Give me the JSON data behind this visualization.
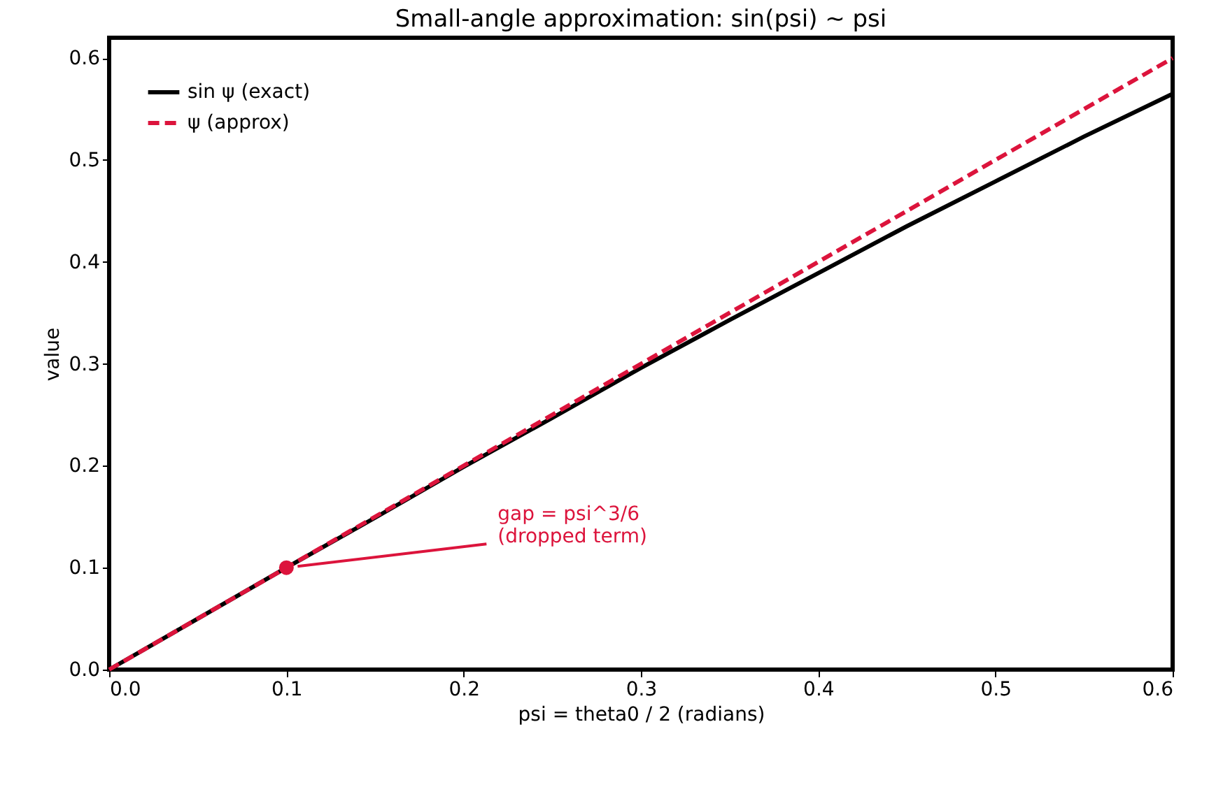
{
  "chart_data": {
    "type": "line",
    "title": "Small-angle approximation: sin(psi) ~ psi",
    "xlabel": "psi = theta0 / 2 (radians)",
    "ylabel": "value",
    "series": [
      {
        "name": "sin ψ (exact)",
        "color": "#000000",
        "line_style": "solid",
        "x": [
          0,
          0.05,
          0.1,
          0.15,
          0.2,
          0.25,
          0.3,
          0.35,
          0.4,
          0.45,
          0.5,
          0.55,
          0.6
        ],
        "values": [
          0,
          0.05,
          0.1,
          0.149,
          0.199,
          0.247,
          0.296,
          0.343,
          0.389,
          0.435,
          0.479,
          0.523,
          0.565
        ]
      },
      {
        "name": "ψ (approx)",
        "color": "#dc143c",
        "line_style": "dashed",
        "x": [
          0,
          0.6
        ],
        "values": [
          0,
          0.6
        ]
      },
      {
        "type": "scatter",
        "color": "#dc143c",
        "marker": "circle",
        "x": [
          0.1
        ],
        "values": [
          0.1
        ]
      }
    ],
    "annotations": [
      {
        "text": "gap = psi^3/6\n(dropped term)",
        "x": 0.1,
        "y": 0.1
      }
    ],
    "xlim": [
      0,
      0.6
    ],
    "ylim": [
      0,
      0.62
    ],
    "xticks": [
      {
        "value": 0,
        "label": "0.0"
      },
      0.1,
      0.2,
      0.3,
      0.4,
      0.5,
      0.6
    ],
    "yticks": [
      {
        "value": 0,
        "label": "0.0"
      },
      0.1,
      0.2,
      0.3,
      0.4,
      0.5,
      0.6
    ],
    "grid": false,
    "legend": "top left"
  }
}
